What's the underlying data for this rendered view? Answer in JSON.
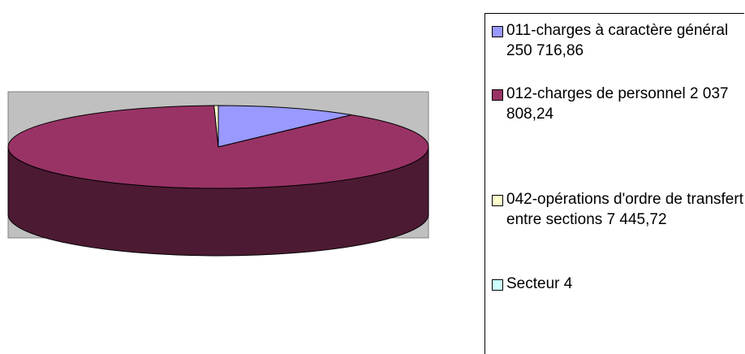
{
  "chart_data": {
    "type": "pie",
    "title": "",
    "series": [
      {
        "label": "011-charges à caractère général 250 716,86",
        "value": 250716.86,
        "color": "#9999ff"
      },
      {
        "label": "012-charges de personnel 2 037 808,24",
        "value": 2037808.24,
        "color": "#993366"
      },
      {
        "label": "042-opérations d'ordre de transfert entre sections 7 445,72",
        "value": 7445.72,
        "color": "#ffffcc"
      },
      {
        "label": "Secteur 4",
        "value": 0,
        "color": "#ccffff"
      }
    ],
    "legend_position": "right",
    "style": "3d"
  }
}
